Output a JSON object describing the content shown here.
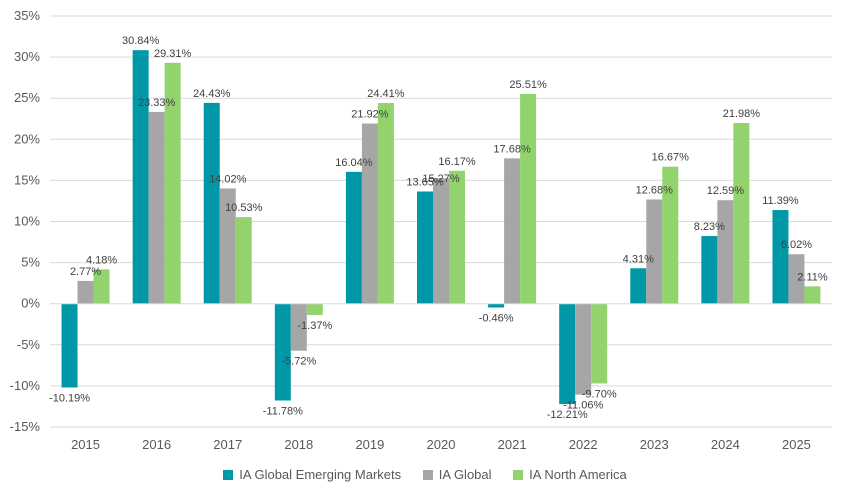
{
  "chart_data": {
    "type": "bar",
    "categories": [
      "2015",
      "2016",
      "2017",
      "2018",
      "2019",
      "2020",
      "2021",
      "2022",
      "2023",
      "2024",
      "2025"
    ],
    "series": [
      {
        "name": "IA Global Emerging Markets",
        "color": "#0097A7",
        "values": [
          -10.19,
          30.84,
          24.43,
          -11.78,
          16.04,
          13.65,
          -0.46,
          -12.21,
          4.31,
          8.23,
          11.39
        ],
        "labels": [
          "-10.19%",
          "30.84%",
          "24.43%",
          "-11.78%",
          "16.04%",
          "13.65%",
          "-0.46%",
          "-12.21%",
          "4.31%",
          "8.23%",
          "11.39%"
        ]
      },
      {
        "name": "IA Global",
        "color": "#A6A6A6",
        "values": [
          2.77,
          23.33,
          14.02,
          -5.72,
          21.92,
          15.27,
          17.68,
          -11.06,
          12.68,
          12.59,
          6.02
        ],
        "labels": [
          "2.77%",
          "23.33%",
          "14.02%",
          "-5.72%",
          "21.92%",
          "15.27%",
          "17.68%",
          "-11.06%",
          "12.68%",
          "12.59%",
          "6.02%"
        ]
      },
      {
        "name": "IA North America",
        "color": "#92D36E",
        "values": [
          4.18,
          29.31,
          10.53,
          -1.37,
          24.41,
          16.17,
          25.51,
          -9.7,
          16.67,
          21.98,
          2.11
        ],
        "labels": [
          "4.18%",
          "29.31%",
          "10.53%",
          "-1.37%",
          "24.41%",
          "16.17%",
          "25.51%",
          "-9.70%",
          "16.67%",
          "21.98%",
          "2.11%"
        ]
      }
    ],
    "ylim": [
      -15,
      35
    ],
    "yticks": [
      35,
      30,
      25,
      20,
      15,
      10,
      5,
      0,
      -5,
      -10,
      -15
    ],
    "ytick_labels": [
      "35%",
      "30%",
      "25%",
      "20%",
      "15%",
      "10%",
      "5%",
      "0%",
      "-5%",
      "-10%",
      "-15%"
    ],
    "grid": true,
    "legend_position": "bottom",
    "title": "",
    "xlabel": "",
    "ylabel": ""
  }
}
